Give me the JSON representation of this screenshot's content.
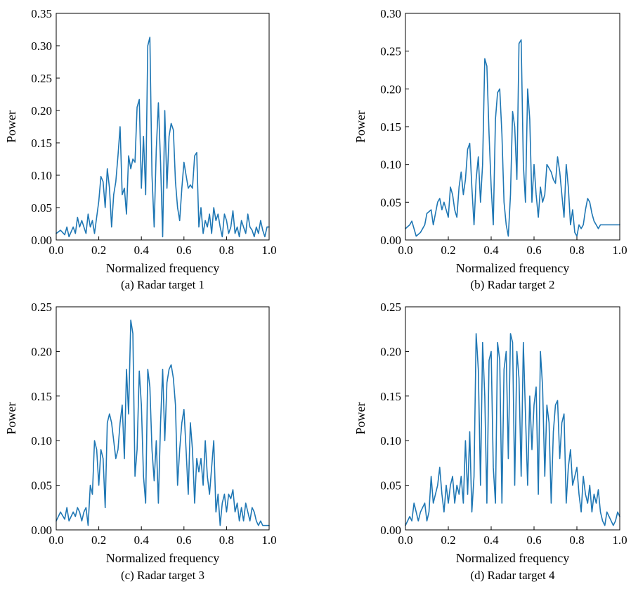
{
  "colors": {
    "series": "#1f77b4"
  },
  "chart_data": [
    {
      "type": "line",
      "caption": "(a)  Radar target 1",
      "xlabel": "Normalized frequency",
      "ylabel": "Power",
      "xlim": [
        0,
        1
      ],
      "ylim": [
        0,
        0.35
      ],
      "xticks": [
        0,
        0.2,
        0.4,
        0.6,
        0.8,
        1.0
      ],
      "xtick_labels": [
        "0.0",
        "0.2",
        "0.4",
        "0.6",
        "0.8",
        "1.0"
      ],
      "yticks": [
        0,
        0.05,
        0.1,
        0.15,
        0.2,
        0.25,
        0.3,
        0.35
      ],
      "ytick_labels": [
        "0.00",
        "0.05",
        "0.10",
        "0.15",
        "0.20",
        "0.25",
        "0.30",
        "0.35"
      ],
      "grid": false,
      "x": [
        0.0,
        0.02,
        0.04,
        0.05,
        0.06,
        0.08,
        0.09,
        0.1,
        0.11,
        0.12,
        0.14,
        0.15,
        0.16,
        0.17,
        0.18,
        0.2,
        0.21,
        0.22,
        0.23,
        0.24,
        0.25,
        0.26,
        0.27,
        0.28,
        0.29,
        0.3,
        0.31,
        0.32,
        0.33,
        0.34,
        0.35,
        0.36,
        0.37,
        0.38,
        0.39,
        0.4,
        0.41,
        0.42,
        0.43,
        0.44,
        0.45,
        0.46,
        0.47,
        0.48,
        0.49,
        0.5,
        0.51,
        0.52,
        0.53,
        0.54,
        0.55,
        0.56,
        0.57,
        0.58,
        0.59,
        0.6,
        0.61,
        0.62,
        0.63,
        0.64,
        0.65,
        0.66,
        0.67,
        0.68,
        0.69,
        0.7,
        0.71,
        0.72,
        0.73,
        0.74,
        0.75,
        0.76,
        0.77,
        0.78,
        0.79,
        0.8,
        0.81,
        0.82,
        0.83,
        0.84,
        0.85,
        0.86,
        0.87,
        0.88,
        0.89,
        0.9,
        0.91,
        0.92,
        0.93,
        0.94,
        0.95,
        0.96,
        0.97,
        0.98,
        0.99,
        1.0
      ],
      "y": [
        0.01,
        0.015,
        0.008,
        0.02,
        0.005,
        0.02,
        0.01,
        0.035,
        0.02,
        0.03,
        0.01,
        0.04,
        0.02,
        0.03,
        0.01,
        0.06,
        0.098,
        0.09,
        0.05,
        0.11,
        0.08,
        0.02,
        0.07,
        0.09,
        0.13,
        0.175,
        0.07,
        0.08,
        0.04,
        0.13,
        0.11,
        0.125,
        0.12,
        0.205,
        0.217,
        0.08,
        0.16,
        0.07,
        0.3,
        0.313,
        0.1,
        0.02,
        0.14,
        0.212,
        0.12,
        0.005,
        0.2,
        0.08,
        0.16,
        0.18,
        0.17,
        0.09,
        0.05,
        0.03,
        0.08,
        0.12,
        0.1,
        0.08,
        0.085,
        0.08,
        0.13,
        0.135,
        0.02,
        0.05,
        0.01,
        0.03,
        0.02,
        0.04,
        0.01,
        0.05,
        0.03,
        0.04,
        0.02,
        0.005,
        0.04,
        0.03,
        0.01,
        0.02,
        0.045,
        0.01,
        0.02,
        0.005,
        0.03,
        0.02,
        0.01,
        0.04,
        0.02,
        0.015,
        0.005,
        0.02,
        0.01,
        0.03,
        0.015,
        0.005,
        0.02,
        0.02
      ]
    },
    {
      "type": "line",
      "caption": "(b)  Radar target 2",
      "xlabel": "Normalized frequency",
      "ylabel": "Power",
      "xlim": [
        0,
        1
      ],
      "ylim": [
        0,
        0.3
      ],
      "xticks": [
        0,
        0.2,
        0.4,
        0.6,
        0.8,
        1.0
      ],
      "xtick_labels": [
        "0.0",
        "0.2",
        "0.4",
        "0.6",
        "0.8",
        "1.0"
      ],
      "yticks": [
        0,
        0.05,
        0.1,
        0.15,
        0.2,
        0.25,
        0.3
      ],
      "ytick_labels": [
        "0.00",
        "0.05",
        "0.10",
        "0.15",
        "0.20",
        "0.25",
        "0.30"
      ],
      "grid": false,
      "x": [
        0.0,
        0.02,
        0.03,
        0.05,
        0.07,
        0.09,
        0.1,
        0.12,
        0.13,
        0.15,
        0.16,
        0.17,
        0.18,
        0.2,
        0.21,
        0.22,
        0.23,
        0.24,
        0.25,
        0.26,
        0.27,
        0.28,
        0.29,
        0.3,
        0.31,
        0.32,
        0.33,
        0.34,
        0.35,
        0.36,
        0.37,
        0.38,
        0.39,
        0.4,
        0.41,
        0.42,
        0.43,
        0.44,
        0.45,
        0.46,
        0.47,
        0.48,
        0.49,
        0.5,
        0.51,
        0.52,
        0.53,
        0.54,
        0.55,
        0.56,
        0.57,
        0.58,
        0.59,
        0.6,
        0.61,
        0.62,
        0.63,
        0.64,
        0.65,
        0.66,
        0.67,
        0.68,
        0.69,
        0.7,
        0.71,
        0.72,
        0.73,
        0.74,
        0.75,
        0.76,
        0.77,
        0.78,
        0.79,
        0.8,
        0.81,
        0.82,
        0.83,
        0.84,
        0.85,
        0.86,
        0.87,
        0.88,
        0.89,
        0.9,
        0.91,
        0.92,
        0.93,
        0.95,
        0.97,
        0.99,
        1.0
      ],
      "y": [
        0.015,
        0.02,
        0.025,
        0.005,
        0.01,
        0.02,
        0.035,
        0.04,
        0.02,
        0.05,
        0.055,
        0.04,
        0.05,
        0.03,
        0.07,
        0.06,
        0.04,
        0.03,
        0.07,
        0.09,
        0.06,
        0.08,
        0.12,
        0.128,
        0.07,
        0.02,
        0.08,
        0.11,
        0.05,
        0.1,
        0.24,
        0.23,
        0.14,
        0.07,
        0.02,
        0.16,
        0.195,
        0.2,
        0.14,
        0.05,
        0.02,
        0.005,
        0.06,
        0.17,
        0.15,
        0.08,
        0.26,
        0.265,
        0.1,
        0.05,
        0.2,
        0.16,
        0.05,
        0.1,
        0.06,
        0.03,
        0.07,
        0.05,
        0.06,
        0.1,
        0.095,
        0.09,
        0.08,
        0.075,
        0.11,
        0.09,
        0.06,
        0.03,
        0.1,
        0.07,
        0.02,
        0.04,
        0.01,
        0.005,
        0.02,
        0.015,
        0.02,
        0.04,
        0.055,
        0.05,
        0.035,
        0.025,
        0.02,
        0.015,
        0.02,
        0.02,
        0.02,
        0.02,
        0.02,
        0.02,
        0.02
      ]
    },
    {
      "type": "line",
      "caption": "(c)  Radar target 3",
      "xlabel": "Normalized frequency",
      "ylabel": "Power",
      "xlim": [
        0,
        1
      ],
      "ylim": [
        0,
        0.25
      ],
      "xticks": [
        0,
        0.2,
        0.4,
        0.6,
        0.8,
        1.0
      ],
      "xtick_labels": [
        "0.0",
        "0.2",
        "0.4",
        "0.6",
        "0.8",
        "1.0"
      ],
      "yticks": [
        0,
        0.05,
        0.1,
        0.15,
        0.2,
        0.25
      ],
      "ytick_labels": [
        "0.00",
        "0.05",
        "0.10",
        "0.15",
        "0.20",
        "0.25"
      ],
      "grid": false,
      "x": [
        0.0,
        0.02,
        0.04,
        0.05,
        0.06,
        0.08,
        0.09,
        0.1,
        0.11,
        0.12,
        0.13,
        0.14,
        0.15,
        0.16,
        0.17,
        0.18,
        0.19,
        0.2,
        0.21,
        0.22,
        0.23,
        0.24,
        0.25,
        0.26,
        0.27,
        0.28,
        0.29,
        0.3,
        0.31,
        0.32,
        0.33,
        0.34,
        0.35,
        0.36,
        0.37,
        0.38,
        0.39,
        0.4,
        0.41,
        0.42,
        0.43,
        0.44,
        0.45,
        0.46,
        0.47,
        0.48,
        0.49,
        0.5,
        0.51,
        0.52,
        0.53,
        0.54,
        0.55,
        0.56,
        0.57,
        0.58,
        0.59,
        0.6,
        0.61,
        0.62,
        0.63,
        0.64,
        0.65,
        0.66,
        0.67,
        0.68,
        0.69,
        0.7,
        0.71,
        0.72,
        0.73,
        0.74,
        0.75,
        0.76,
        0.77,
        0.78,
        0.79,
        0.8,
        0.81,
        0.82,
        0.83,
        0.84,
        0.85,
        0.86,
        0.87,
        0.88,
        0.89,
        0.9,
        0.91,
        0.92,
        0.93,
        0.94,
        0.95,
        0.96,
        0.97,
        0.98,
        0.99,
        1.0
      ],
      "y": [
        0.01,
        0.02,
        0.012,
        0.025,
        0.01,
        0.02,
        0.015,
        0.025,
        0.02,
        0.01,
        0.02,
        0.025,
        0.005,
        0.05,
        0.04,
        0.1,
        0.09,
        0.05,
        0.09,
        0.08,
        0.025,
        0.12,
        0.13,
        0.12,
        0.1,
        0.08,
        0.09,
        0.12,
        0.14,
        0.08,
        0.18,
        0.13,
        0.235,
        0.22,
        0.06,
        0.09,
        0.178,
        0.14,
        0.06,
        0.03,
        0.18,
        0.16,
        0.09,
        0.055,
        0.1,
        0.03,
        0.12,
        0.18,
        0.1,
        0.165,
        0.18,
        0.185,
        0.17,
        0.14,
        0.05,
        0.09,
        0.12,
        0.135,
        0.09,
        0.04,
        0.12,
        0.09,
        0.03,
        0.08,
        0.065,
        0.08,
        0.05,
        0.1,
        0.06,
        0.04,
        0.07,
        0.1,
        0.02,
        0.04,
        0.005,
        0.03,
        0.04,
        0.02,
        0.04,
        0.035,
        0.045,
        0.02,
        0.03,
        0.01,
        0.025,
        0.01,
        0.03,
        0.02,
        0.01,
        0.025,
        0.02,
        0.01,
        0.005,
        0.01,
        0.005,
        0.005,
        0.005,
        0.005
      ]
    },
    {
      "type": "line",
      "caption": "(d)  Radar target 4",
      "xlabel": "Normalized frequency",
      "ylabel": "Power",
      "xlim": [
        0,
        1
      ],
      "ylim": [
        0,
        0.25
      ],
      "xticks": [
        0,
        0.2,
        0.4,
        0.6,
        0.8,
        1.0
      ],
      "xtick_labels": [
        "0.0",
        "0.2",
        "0.4",
        "0.6",
        "0.8",
        "1.0"
      ],
      "yticks": [
        0,
        0.05,
        0.1,
        0.15,
        0.2,
        0.25
      ],
      "ytick_labels": [
        "0.00",
        "0.05",
        "0.10",
        "0.15",
        "0.20",
        "0.25"
      ],
      "grid": false,
      "x": [
        0.0,
        0.02,
        0.03,
        0.04,
        0.05,
        0.06,
        0.07,
        0.08,
        0.09,
        0.1,
        0.11,
        0.12,
        0.13,
        0.14,
        0.15,
        0.16,
        0.17,
        0.18,
        0.19,
        0.2,
        0.21,
        0.22,
        0.23,
        0.24,
        0.25,
        0.26,
        0.27,
        0.28,
        0.29,
        0.3,
        0.31,
        0.32,
        0.33,
        0.34,
        0.35,
        0.36,
        0.37,
        0.38,
        0.39,
        0.4,
        0.41,
        0.42,
        0.43,
        0.44,
        0.45,
        0.46,
        0.47,
        0.48,
        0.49,
        0.5,
        0.51,
        0.52,
        0.53,
        0.54,
        0.55,
        0.56,
        0.57,
        0.58,
        0.59,
        0.6,
        0.61,
        0.62,
        0.63,
        0.64,
        0.65,
        0.66,
        0.67,
        0.68,
        0.69,
        0.7,
        0.71,
        0.72,
        0.73,
        0.74,
        0.75,
        0.76,
        0.77,
        0.78,
        0.79,
        0.8,
        0.81,
        0.82,
        0.83,
        0.84,
        0.85,
        0.86,
        0.87,
        0.88,
        0.89,
        0.9,
        0.91,
        0.92,
        0.93,
        0.94,
        0.95,
        0.96,
        0.97,
        0.98,
        0.99,
        1.0
      ],
      "y": [
        0.005,
        0.015,
        0.01,
        0.03,
        0.02,
        0.01,
        0.02,
        0.025,
        0.03,
        0.01,
        0.02,
        0.06,
        0.03,
        0.04,
        0.05,
        0.07,
        0.04,
        0.02,
        0.05,
        0.03,
        0.05,
        0.06,
        0.03,
        0.05,
        0.04,
        0.06,
        0.03,
        0.1,
        0.04,
        0.11,
        0.02,
        0.06,
        0.22,
        0.18,
        0.05,
        0.21,
        0.15,
        0.03,
        0.19,
        0.2,
        0.07,
        0.03,
        0.21,
        0.19,
        0.03,
        0.18,
        0.2,
        0.08,
        0.22,
        0.21,
        0.05,
        0.2,
        0.17,
        0.06,
        0.21,
        0.13,
        0.05,
        0.15,
        0.09,
        0.14,
        0.16,
        0.04,
        0.2,
        0.16,
        0.06,
        0.14,
        0.12,
        0.03,
        0.11,
        0.14,
        0.145,
        0.08,
        0.12,
        0.13,
        0.03,
        0.07,
        0.09,
        0.05,
        0.06,
        0.07,
        0.04,
        0.02,
        0.06,
        0.04,
        0.03,
        0.05,
        0.02,
        0.04,
        0.03,
        0.045,
        0.02,
        0.01,
        0.005,
        0.02,
        0.015,
        0.01,
        0.005,
        0.01,
        0.02,
        0.015
      ]
    }
  ]
}
